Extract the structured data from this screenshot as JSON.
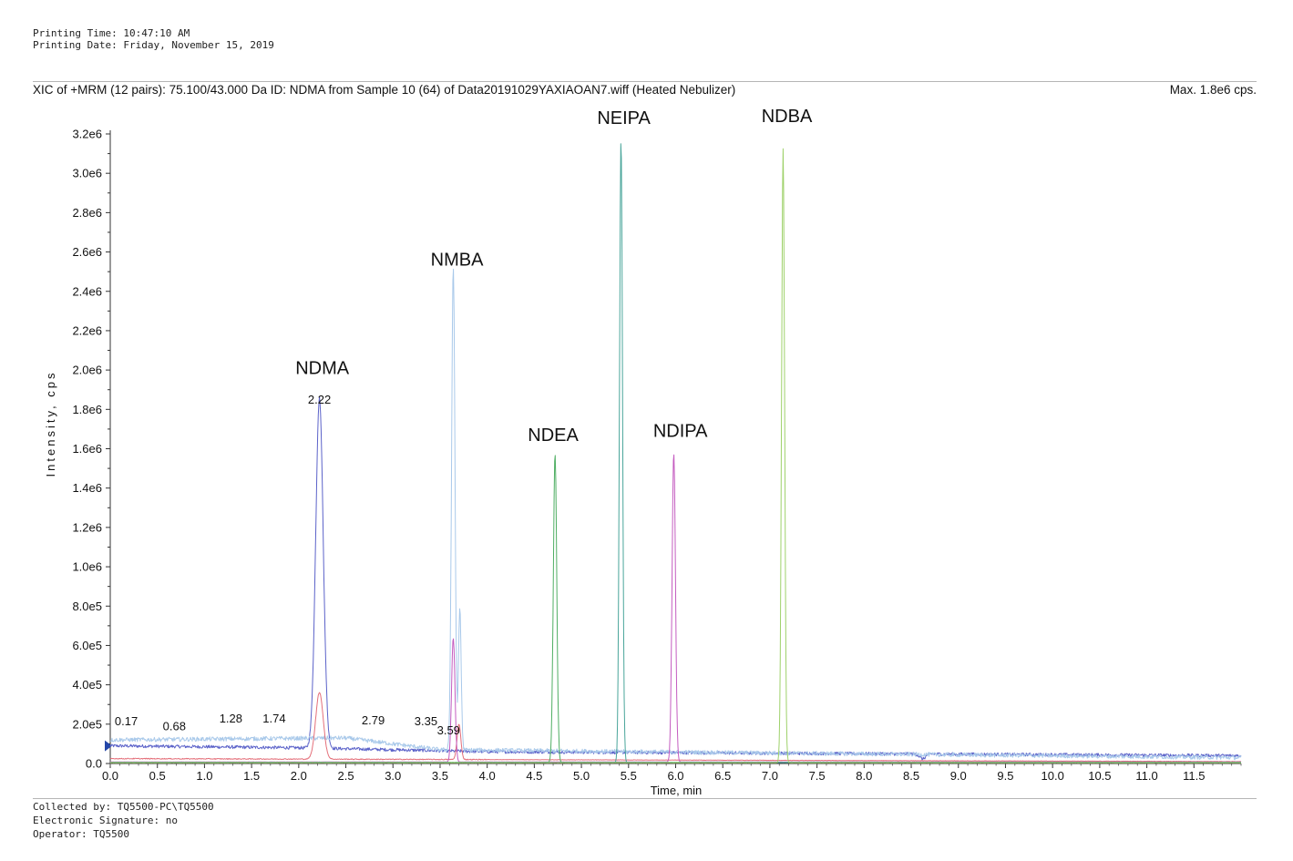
{
  "header": {
    "printing_time": "Printing Time: 10:47:10 AM",
    "printing_date": "Printing Date: Friday, November 15, 2019"
  },
  "plot_title": "XIC of +MRM (12 pairs): 75.100/43.000 Da ID: NDMA from Sample 10 (64) of Data20191029YAXIAOAN7.wiff (Heated Nebulizer)",
  "max_label": "Max. 1.8e6 cps.",
  "footer": {
    "collected_by": "Collected by: TQ5500-PC\\TQ5500",
    "signature": "Electronic Signature: no",
    "operator": "Operator: TQ5500"
  },
  "chart_data": {
    "type": "line",
    "xlabel": "Time, min",
    "ylabel": "Intensity, cps",
    "xlim": [
      0,
      12.0
    ],
    "ylim": [
      0,
      3200000
    ],
    "x_ticks": [
      "0.0",
      "0.5",
      "1.0",
      "1.5",
      "2.0",
      "2.5",
      "3.0",
      "3.5",
      "4.0",
      "4.5",
      "5.0",
      "5.5",
      "6.0",
      "6.5",
      "7.0",
      "7.5",
      "8.0",
      "8.5",
      "9.0",
      "9.5",
      "10.0",
      "10.5",
      "11.0",
      "11.5"
    ],
    "y_ticks": [
      "0.0",
      "2.0e5",
      "4.0e5",
      "6.0e5",
      "8.0e5",
      "1.0e6",
      "1.2e6",
      "1.4e6",
      "1.6e6",
      "1.8e6",
      "2.0e6",
      "2.2e6",
      "2.4e6",
      "2.6e6",
      "2.8e6",
      "3.0e6",
      "3.2e6"
    ],
    "series": [
      {
        "color": "#5b62c9",
        "baseline": [
          [
            0,
            90000
          ],
          [
            2.0,
            80000
          ],
          [
            4.0,
            60000
          ],
          [
            12.0,
            40000
          ]
        ],
        "peaks": [
          {
            "x": 2.22,
            "y": 1780000,
            "w": 0.04
          },
          {
            "x": 8.62,
            "y": -25000,
            "w": 0.03
          }
        ]
      },
      {
        "color": "#a9c9ea",
        "baseline": [
          [
            0,
            120000
          ],
          [
            2.5,
            130000
          ],
          [
            3.5,
            70000
          ],
          [
            12.0,
            30000
          ]
        ],
        "peaks": [
          {
            "x": 3.64,
            "y": 2450000,
            "w": 0.018
          },
          {
            "x": 3.71,
            "y": 720000,
            "w": 0.014
          }
        ]
      },
      {
        "color": "#e46f7a",
        "baseline": [
          [
            0,
            25000
          ],
          [
            12.0,
            10000
          ]
        ],
        "peaks": [
          {
            "x": 2.22,
            "y": 340000,
            "w": 0.04
          },
          {
            "x": 3.7,
            "y": 180000,
            "w": 0.02
          }
        ]
      },
      {
        "color": "#c45cc0",
        "baseline": [
          [
            0,
            8000
          ],
          [
            12.0,
            8000
          ]
        ],
        "peaks": [
          {
            "x": 3.64,
            "y": 630000,
            "w": 0.018
          },
          {
            "x": 5.98,
            "y": 1570000,
            "w": 0.018
          }
        ]
      },
      {
        "color": "#4fae63",
        "baseline": [
          [
            0,
            6000
          ],
          [
            12.0,
            6000
          ]
        ],
        "peaks": [
          {
            "x": 4.72,
            "y": 1570000,
            "w": 0.018
          }
        ]
      },
      {
        "color": "#49a59a",
        "baseline": [
          [
            0,
            5000
          ],
          [
            12.0,
            5000
          ]
        ],
        "peaks": [
          {
            "x": 5.42,
            "y": 3170000,
            "w": 0.016
          }
        ]
      },
      {
        "color": "#9ed16a",
        "baseline": [
          [
            0,
            4000
          ],
          [
            12.0,
            4000
          ]
        ],
        "peaks": [
          {
            "x": 7.14,
            "y": 3120000,
            "w": 0.016
          }
        ]
      }
    ],
    "peak_labels": [
      {
        "label": "0.17",
        "x": 0.17,
        "y": 175000
      },
      {
        "label": "0.68",
        "x": 0.68,
        "y": 150000
      },
      {
        "label": "1.28",
        "x": 1.28,
        "y": 190000
      },
      {
        "label": "1.74",
        "x": 1.74,
        "y": 190000
      },
      {
        "label": "2.22",
        "x": 2.22,
        "y": 1810000
      },
      {
        "label": "2.79",
        "x": 2.79,
        "y": 180000
      },
      {
        "label": "3.35",
        "x": 3.35,
        "y": 175000
      },
      {
        "label": "3.59",
        "x": 3.59,
        "y": 130000
      }
    ],
    "annotations": [
      {
        "text": "NDMA",
        "x": 2.25,
        "y": 1980000
      },
      {
        "text": "NMBA",
        "x": 3.68,
        "y": 2530000
      },
      {
        "text": "NDEA",
        "x": 4.7,
        "y": 1640000
      },
      {
        "text": "NEIPA",
        "x": 5.45,
        "y": 3250000
      },
      {
        "text": "NDIPA",
        "x": 6.05,
        "y": 1660000
      },
      {
        "text": "NDBA",
        "x": 7.18,
        "y": 3260000
      }
    ],
    "grid": false,
    "legend": "none"
  }
}
